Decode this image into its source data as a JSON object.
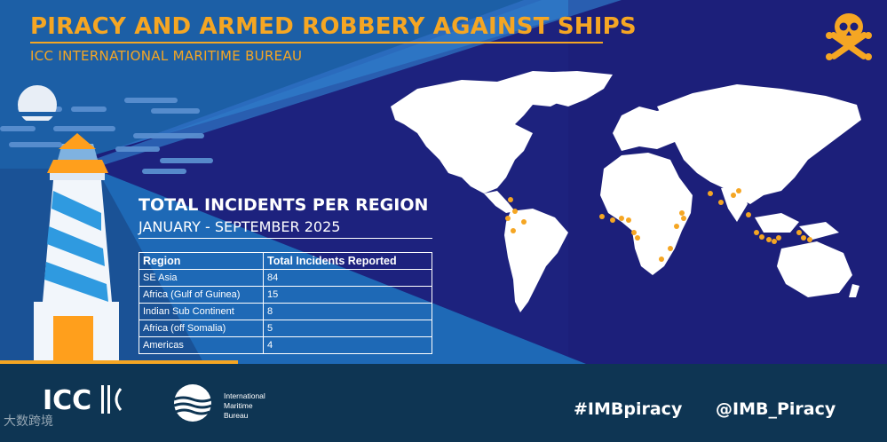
{
  "header": {
    "title": "PIRACY AND ARMED ROBBERY AGAINST SHIPS",
    "subtitle": "ICC INTERNATIONAL MARITIME BUREAU"
  },
  "panel": {
    "title": "TOTAL INCIDENTS PER REGION",
    "period": "JANUARY - SEPTEMBER 2025"
  },
  "table": {
    "columns": [
      "Region",
      "Total Incidents Reported"
    ],
    "rows": [
      {
        "region": "SE Asia",
        "total": "84"
      },
      {
        "region": "Africa (Gulf of Guinea)",
        "total": "15"
      },
      {
        "region": "Indian Sub Continent",
        "total": "8"
      },
      {
        "region": "Africa (off Somalia)",
        "total": "5"
      },
      {
        "region": "Americas",
        "total": "4"
      }
    ]
  },
  "footer": {
    "icc_logo_text": "ICC",
    "imb_line1": "International",
    "imb_line2": "Maritime",
    "imb_line3": "Bureau",
    "hashtag": "#IMBpiracy",
    "handle": "@IMB_Piracy"
  },
  "watermark": "大数跨境",
  "colors": {
    "accent": "#f5a623",
    "background": "#1c1f7a",
    "footer": "#0e3553",
    "light_blue": "#1f7ac4",
    "incident_dot": "#f5a623"
  },
  "icons": [
    "skull-crossbones-icon",
    "lighthouse-illustration",
    "moon-icon",
    "world-map"
  ]
}
